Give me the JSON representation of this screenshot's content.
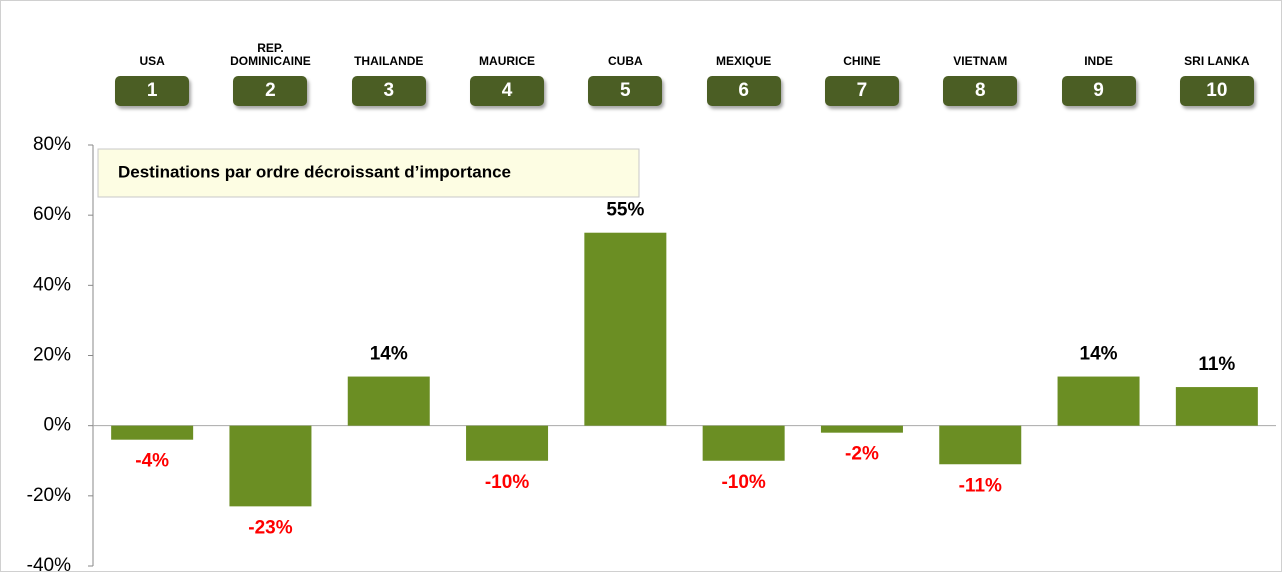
{
  "chart_data": {
    "type": "bar",
    "annotation": "Destinations par ordre décroissant d’importance",
    "categories": [
      "USA",
      "REP. DOMINICAINE",
      "THAILANDE",
      "MAURICE",
      "CUBA",
      "MEXIQUE",
      "CHINE",
      "VIETNAM",
      "INDE",
      "SRI LANKA"
    ],
    "ranks": [
      1,
      2,
      3,
      4,
      5,
      6,
      7,
      8,
      9,
      10
    ],
    "values": [
      -4,
      -23,
      14,
      -10,
      55,
      -10,
      -2,
      -11,
      14,
      11
    ],
    "value_labels": [
      "-4%",
      "-23%",
      "14%",
      "-10%",
      "55%",
      "-10%",
      "-2%",
      "-11%",
      "14%",
      "11%"
    ],
    "color": "#6b8e23",
    "positive_label_color": "#000000",
    "negative_label_color": "#ff0000",
    "ylim": [
      -40,
      80
    ],
    "yticks": [
      {
        "value": -40,
        "label": "-40%"
      },
      {
        "value": -20,
        "label": "-20%"
      },
      {
        "value": 0,
        "label": "0%"
      },
      {
        "value": 20,
        "label": "20%"
      },
      {
        "value": 40,
        "label": "40%"
      },
      {
        "value": 60,
        "label": "60%"
      },
      {
        "value": 80,
        "label": "80%"
      }
    ],
    "grid": false
  }
}
